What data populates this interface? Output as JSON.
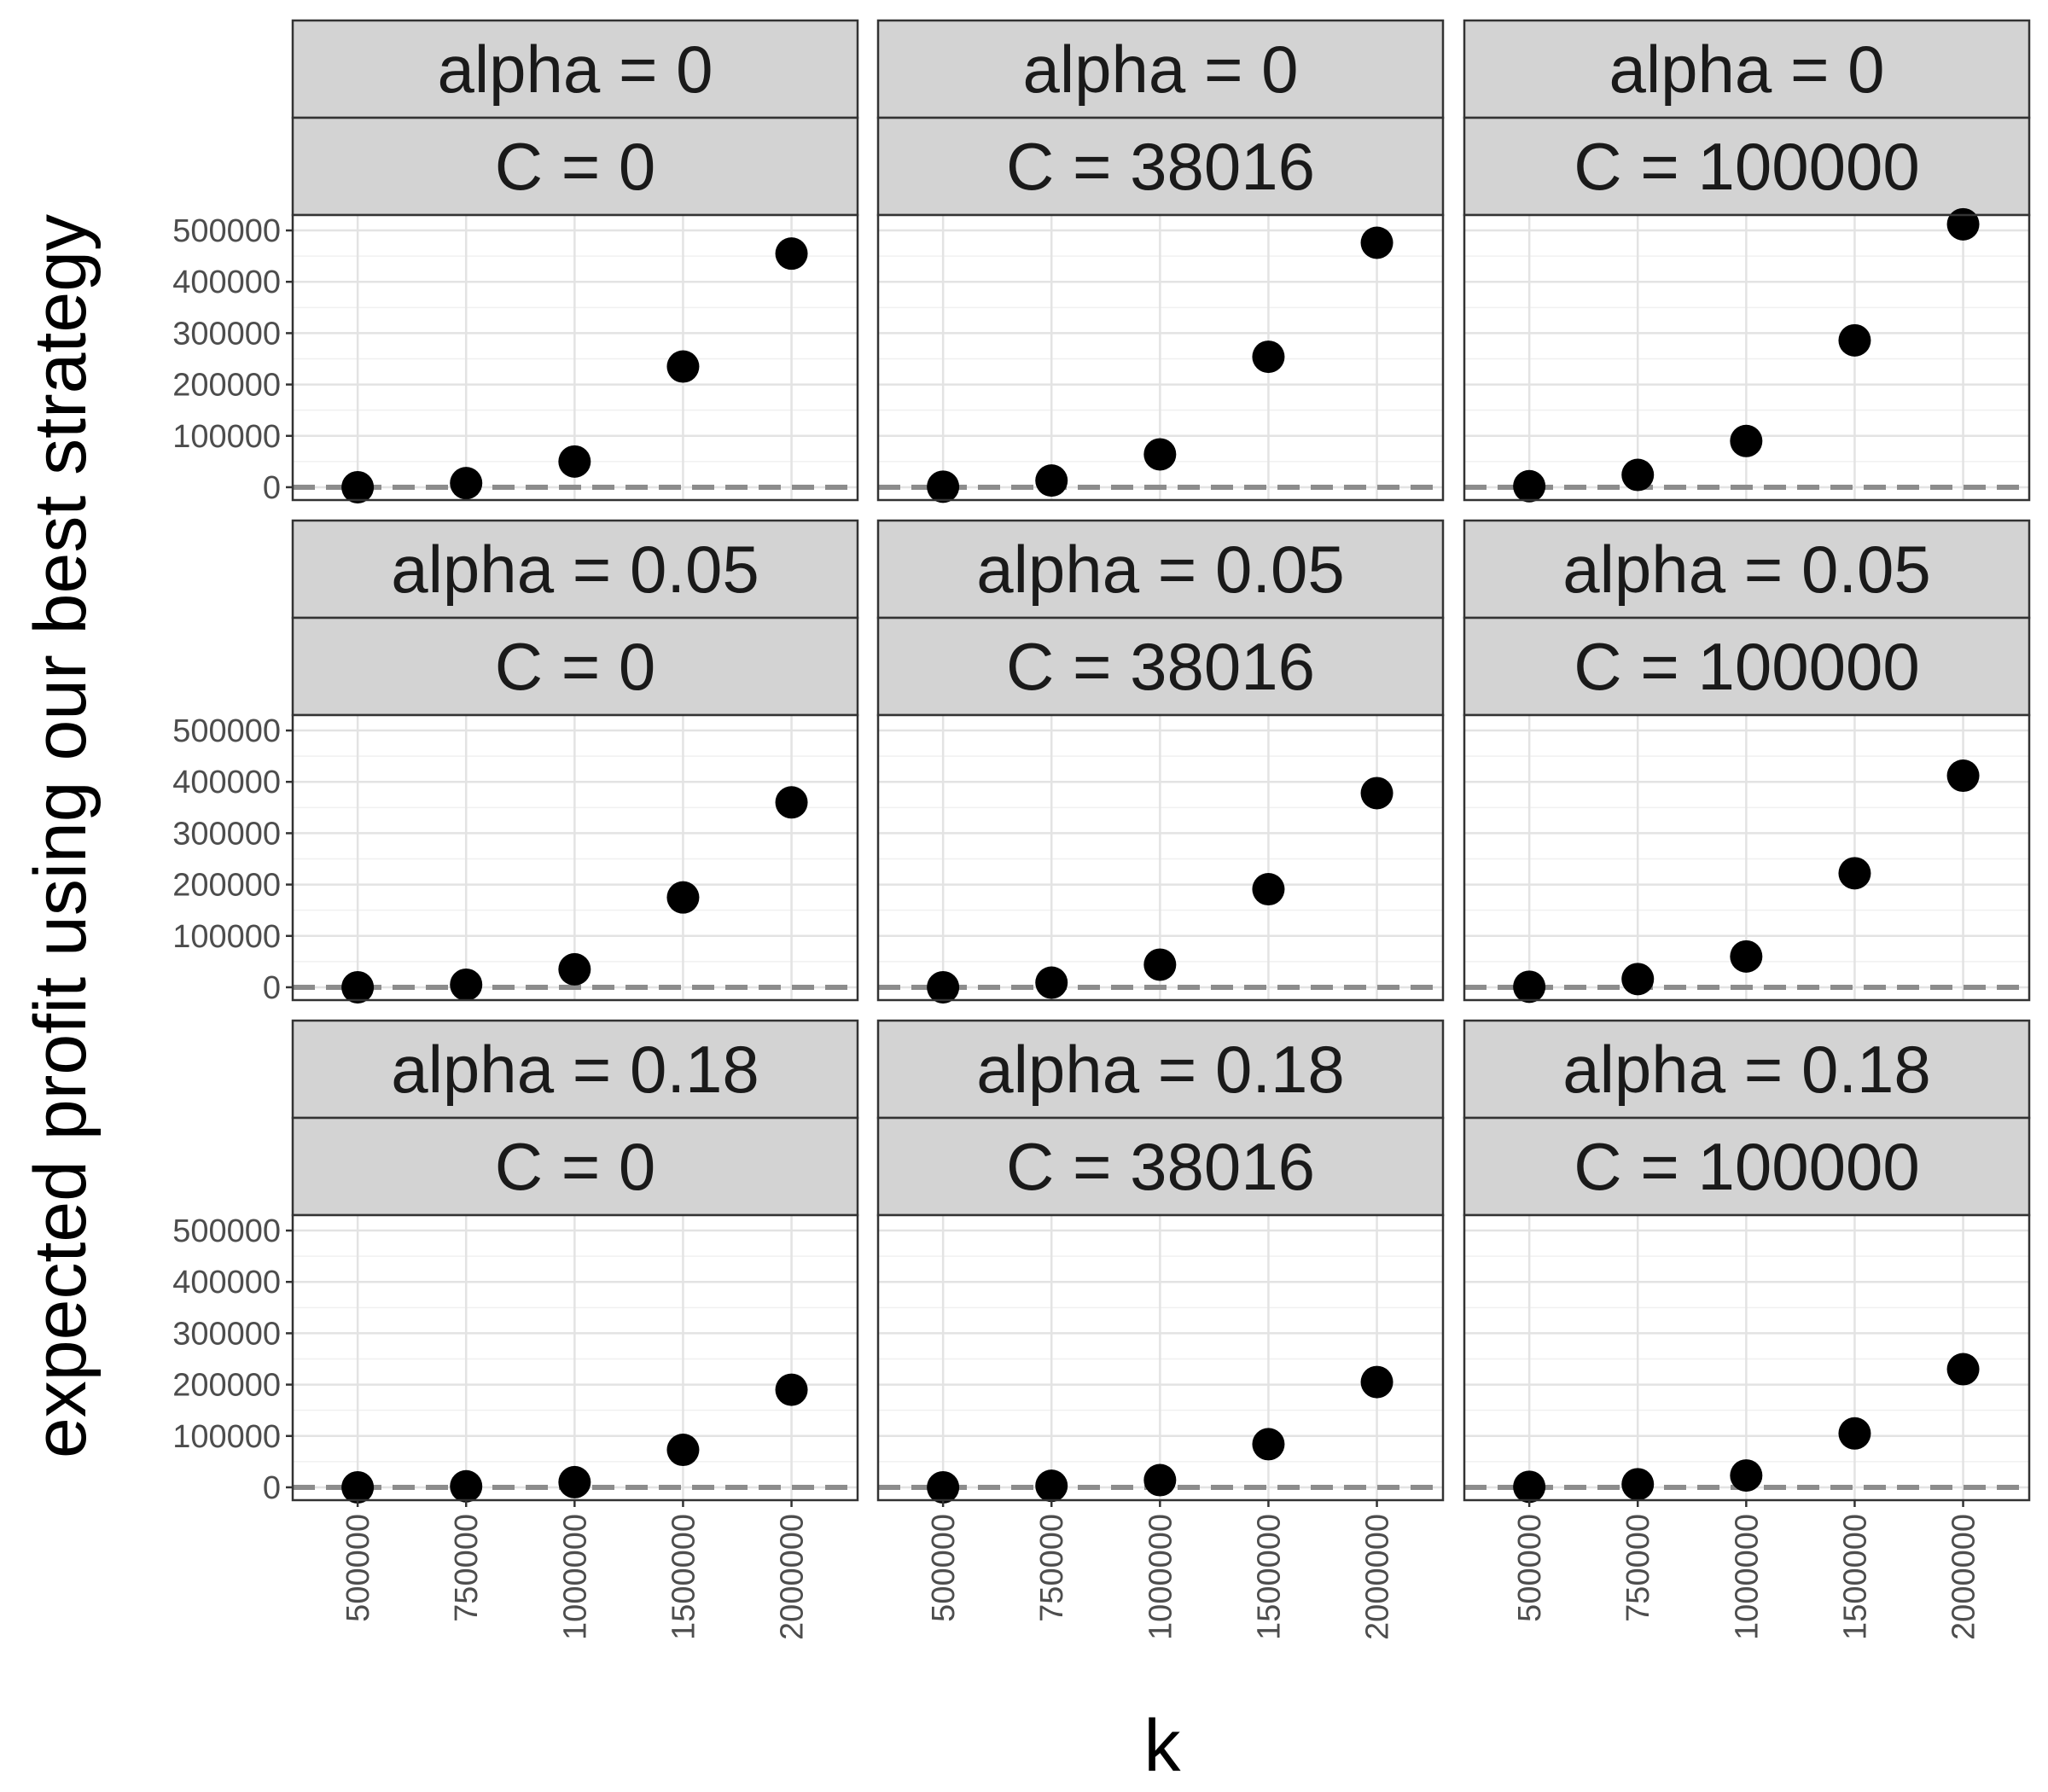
{
  "chart_data": {
    "type": "scatter",
    "layout": "facet-grid",
    "xlabel": "k",
    "ylabel": "expected profit using our best strategy",
    "x_ticks": [
      "500000",
      "750000",
      "1000000",
      "1500000",
      "2000000"
    ],
    "y_ticks": [
      "0",
      "100000",
      "200000",
      "300000",
      "400000",
      "500000"
    ],
    "ylim": [
      -25000,
      530000
    ],
    "grid": true,
    "reference_line": {
      "y": 0,
      "style": "dashed",
      "color": "#8c8c8c"
    },
    "point_color": "#000000",
    "strip_color": "#d3d3d3",
    "panels": [
      {
        "alpha_label": "alpha = 0",
        "c_label": "C = 0",
        "values": [
          0,
          8000,
          50000,
          235000,
          455000
        ]
      },
      {
        "alpha_label": "alpha = 0",
        "c_label": "C = 38016",
        "values": [
          1000,
          13000,
          64000,
          254000,
          476000
        ]
      },
      {
        "alpha_label": "alpha = 0",
        "c_label": "C = 100000",
        "values": [
          2000,
          24000,
          90000,
          286000,
          512000
        ]
      },
      {
        "alpha_label": "alpha = 0.05",
        "c_label": "C = 0",
        "values": [
          0,
          5000,
          35000,
          175000,
          360000
        ]
      },
      {
        "alpha_label": "alpha = 0.05",
        "c_label": "C = 38016",
        "values": [
          0,
          9000,
          44000,
          191000,
          378000
        ]
      },
      {
        "alpha_label": "alpha = 0.05",
        "c_label": "C = 100000",
        "values": [
          1000,
          16000,
          60000,
          222000,
          412000
        ]
      },
      {
        "alpha_label": "alpha = 0.18",
        "c_label": "C = 0",
        "values": [
          0,
          2000,
          10000,
          73000,
          190000
        ]
      },
      {
        "alpha_label": "alpha = 0.18",
        "c_label": "C = 38016",
        "values": [
          0,
          3000,
          14000,
          84000,
          205000
        ]
      },
      {
        "alpha_label": "alpha = 0.18",
        "c_label": "C = 100000",
        "values": [
          1000,
          6000,
          23000,
          105000,
          230000
        ]
      }
    ]
  }
}
